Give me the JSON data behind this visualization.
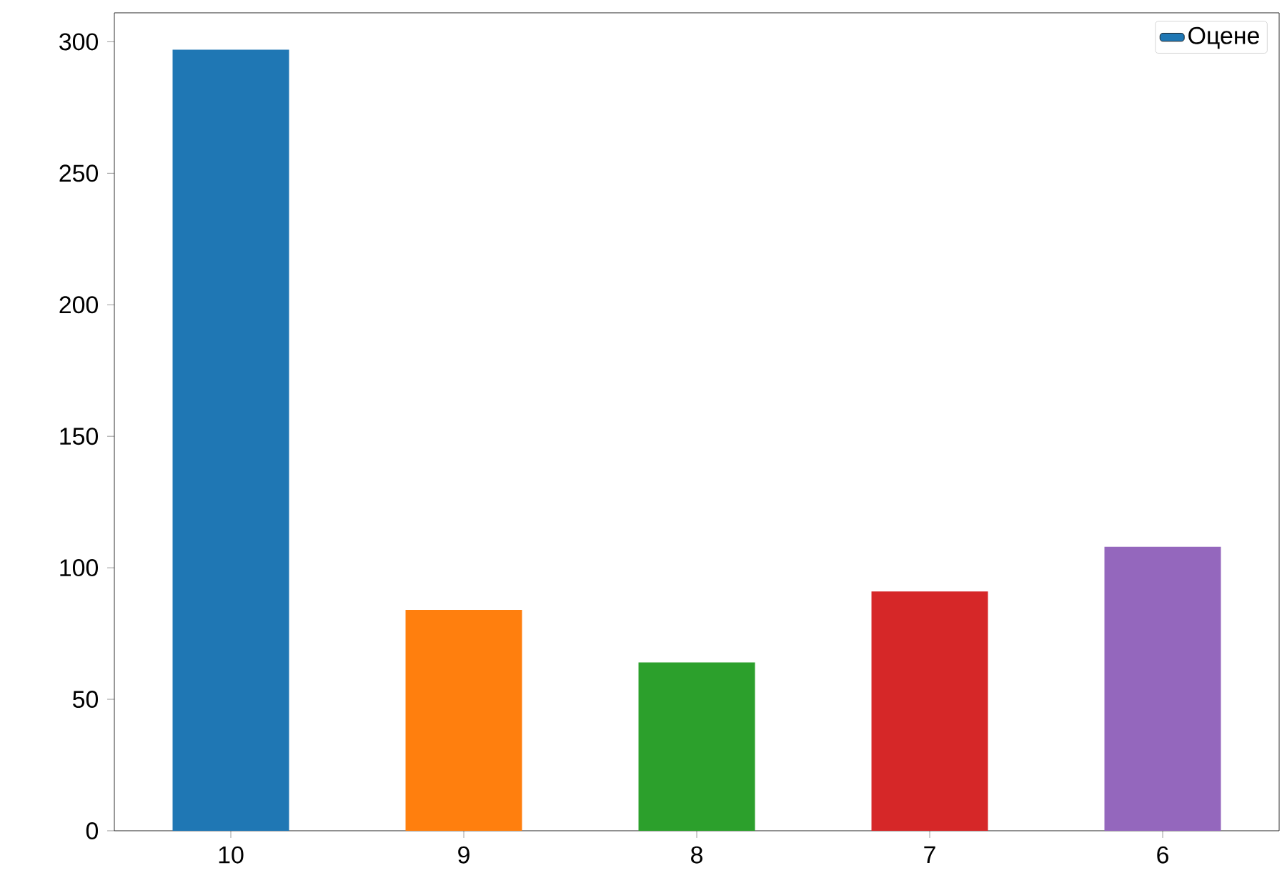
{
  "chart_data": {
    "type": "bar",
    "categories": [
      "10",
      "9",
      "8",
      "7",
      "6"
    ],
    "series": [
      {
        "name": "Оцене",
        "color": "#1f77b4",
        "colors": [
          "#1f77b4",
          "#ff7f0e",
          "#2ca02c",
          "#d62728",
          "#9467bd"
        ],
        "values": [
          297,
          84,
          64,
          91,
          108
        ]
      }
    ],
    "ylim": [
      0,
      311
    ],
    "yticks": [
      0,
      50,
      100,
      150,
      200,
      250,
      300
    ],
    "legend": "top right",
    "grid": false
  }
}
